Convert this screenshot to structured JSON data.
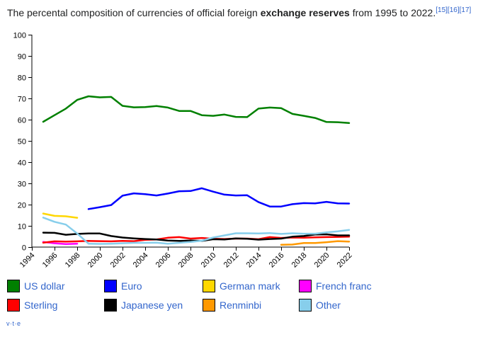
{
  "caption": {
    "pre": "The percental composition of currencies of official foreign ",
    "bold": "exchange reserves",
    "post": " from 1995 to 2022.",
    "refs": [
      "[15]",
      "[16]",
      "[17]"
    ]
  },
  "vte": {
    "v": "v",
    "t": "t",
    "e": "e",
    "sep": "·"
  },
  "chart_data": {
    "type": "line",
    "title": "",
    "xlabel": "",
    "ylabel": "",
    "xlim": [
      1994,
      2022
    ],
    "ylim": [
      0,
      100
    ],
    "xticks": [
      1994,
      1996,
      1998,
      2000,
      2002,
      2004,
      2006,
      2008,
      2010,
      2012,
      2014,
      2016,
      2018,
      2020,
      2022
    ],
    "yticks": [
      0,
      10,
      20,
      30,
      40,
      50,
      60,
      70,
      80,
      90,
      100
    ],
    "grid": false,
    "legend_position": "bottom",
    "series": [
      {
        "name": "US dollar",
        "color": "#008000",
        "x": [
          1995,
          1996,
          1997,
          1998,
          1999,
          2000,
          2001,
          2002,
          2003,
          2004,
          2005,
          2006,
          2007,
          2008,
          2009,
          2010,
          2011,
          2012,
          2013,
          2014,
          2015,
          2016,
          2017,
          2018,
          2019,
          2020,
          2021,
          2022
        ],
        "y": [
          59.0,
          62.1,
          65.2,
          69.3,
          71.0,
          70.5,
          70.7,
          66.5,
          65.8,
          65.9,
          66.4,
          65.7,
          64.1,
          64.1,
          62.1,
          61.8,
          62.4,
          61.3,
          61.2,
          65.2,
          65.7,
          65.4,
          62.7,
          61.8,
          60.8,
          58.9,
          58.8,
          58.4
        ]
      },
      {
        "name": "Euro",
        "color": "#0000ff",
        "x": [
          1999,
          2000,
          2001,
          2002,
          2003,
          2004,
          2005,
          2006,
          2007,
          2008,
          2009,
          2010,
          2011,
          2012,
          2013,
          2014,
          2015,
          2016,
          2017,
          2018,
          2019,
          2020,
          2021,
          2022
        ],
        "y": [
          17.9,
          18.8,
          19.8,
          24.2,
          25.3,
          24.9,
          24.3,
          25.2,
          26.3,
          26.4,
          27.7,
          26.1,
          24.7,
          24.3,
          24.4,
          21.2,
          19.1,
          19.1,
          20.2,
          20.7,
          20.6,
          21.3,
          20.6,
          20.5
        ]
      },
      {
        "name": "German mark",
        "color": "#ffd700",
        "x": [
          1995,
          1996,
          1997,
          1998
        ],
        "y": [
          15.8,
          14.7,
          14.5,
          13.8
        ]
      },
      {
        "name": "French franc",
        "color": "#ff00ff",
        "x": [
          1995,
          1996,
          1997,
          1998
        ],
        "y": [
          2.4,
          1.8,
          1.4,
          1.6
        ]
      },
      {
        "name": "Sterling",
        "color": "#ff0000",
        "x": [
          1995,
          1996,
          1997,
          1998,
          1999,
          2000,
          2001,
          2002,
          2003,
          2004,
          2005,
          2006,
          2007,
          2008,
          2009,
          2010,
          2011,
          2012,
          2013,
          2014,
          2015,
          2016,
          2017,
          2018,
          2019,
          2020,
          2021,
          2022
        ],
        "y": [
          2.1,
          2.7,
          2.6,
          2.7,
          2.9,
          2.8,
          2.7,
          2.9,
          2.8,
          3.4,
          3.6,
          4.4,
          4.7,
          4.0,
          4.3,
          3.9,
          3.8,
          4.0,
          4.0,
          3.7,
          4.7,
          4.3,
          4.5,
          4.4,
          4.6,
          4.7,
          4.8,
          4.9
        ]
      },
      {
        "name": "Japanese yen",
        "color": "#000000",
        "x": [
          1995,
          1996,
          1997,
          1998,
          1999,
          2000,
          2001,
          2002,
          2003,
          2004,
          2005,
          2006,
          2007,
          2008,
          2009,
          2010,
          2011,
          2012,
          2013,
          2014,
          2015,
          2016,
          2017,
          2018,
          2019,
          2020,
          2021,
          2022
        ],
        "y": [
          6.8,
          6.7,
          5.8,
          6.2,
          6.4,
          6.4,
          5.2,
          4.5,
          4.1,
          3.8,
          3.6,
          3.1,
          2.9,
          3.1,
          2.9,
          3.7,
          3.6,
          4.1,
          3.9,
          3.5,
          3.8,
          4.0,
          4.9,
          5.2,
          5.9,
          6.0,
          5.5,
          5.5
        ]
      },
      {
        "name": "Renminbi",
        "color": "#ff9900",
        "x": [
          2016,
          2017,
          2018,
          2019,
          2020,
          2021,
          2022
        ],
        "y": [
          1.1,
          1.2,
          1.9,
          1.9,
          2.3,
          2.8,
          2.6
        ]
      },
      {
        "name": "Other",
        "color": "#87ceeb",
        "x": [
          1995,
          1996,
          1997,
          1998,
          1999,
          2000,
          2001,
          2002,
          2003,
          2004,
          2005,
          2006,
          2007,
          2008,
          2009,
          2010,
          2011,
          2012,
          2013,
          2014,
          2015,
          2016,
          2017,
          2018,
          2019,
          2020,
          2021,
          2022
        ],
        "y": [
          13.9,
          11.9,
          10.6,
          6.4,
          1.6,
          1.5,
          1.6,
          1.8,
          2.0,
          2.0,
          2.1,
          1.6,
          2.0,
          2.4,
          3.0,
          4.5,
          5.5,
          6.5,
          6.5,
          6.4,
          6.6,
          6.2,
          6.5,
          6.3,
          6.3,
          6.9,
          7.4,
          8.1
        ]
      }
    ]
  }
}
